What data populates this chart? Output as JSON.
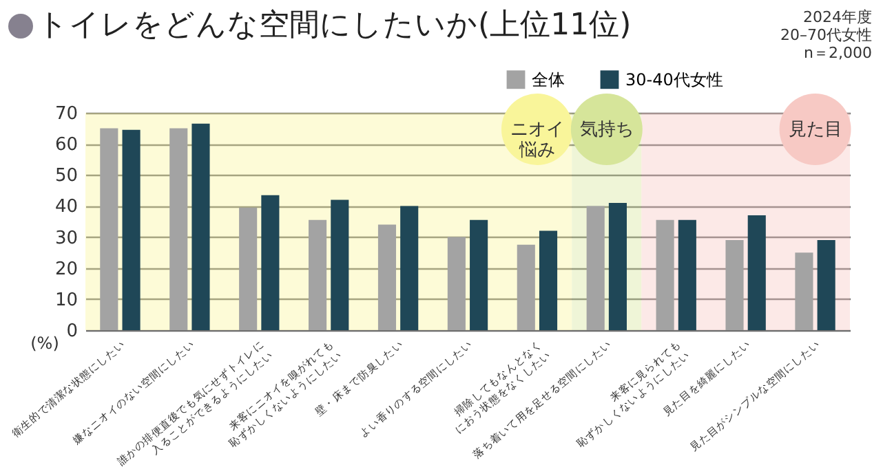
{
  "chart_data": {
    "type": "bar",
    "title": "トイレをどんな空間にしたいか(上位11位)",
    "ylabel": "(%)",
    "annotations": [
      "2024年度",
      "20–70代女性",
      "n＝2,000"
    ],
    "categories": [
      "衛生的で清潔な状態にしたい",
      "嫌なニオイのない空間にしたい",
      "誰かの排便直後でも気にせずトイレに\n入ることができるようにしたい",
      "来客にニオイを嗅がれても\n恥ずかしくないようにしたい",
      "壁・床まで防臭したい",
      "よい香りのする空間にしたい",
      "掃除してもなんとなく\nにおう状態をなくしたい",
      "落ち着いて用を足せる空間にしたい",
      "来客に見られても\n恥ずかしくないようにしたい",
      "見た目を綺麗にしたい",
      "見た目がシンプルな空間にしたい"
    ],
    "series": [
      {
        "name": "全体",
        "color": "#a3a3a3",
        "values": [
          65,
          65,
          39.5,
          35.5,
          34,
          30,
          27.5,
          40,
          35.5,
          29,
          25
        ]
      },
      {
        "name": "30-40代女性",
        "color": "#1f4757",
        "values": [
          64.5,
          66.5,
          43.5,
          42,
          40,
          35.5,
          32,
          41,
          35.5,
          37,
          29
        ]
      }
    ],
    "ylim": [
      0,
      70
    ],
    "yticks": [
      0,
      10,
      20,
      30,
      40,
      50,
      60,
      70
    ],
    "grid": "y",
    "legend": "top right",
    "bands": [
      {
        "axis": "x",
        "from": "衛生的で清潔な状態にしたい",
        "to": "掃除してもなんとなく\nにおう状態をなくしたい",
        "label": "ニオイ悩み",
        "color": "#f9f59a"
      },
      {
        "axis": "x",
        "from": "落ち着いて用を足せる空間にしたい",
        "to": "落ち着いて用を足せる空間にしたい",
        "label": "気持ち",
        "color": "#d6e59a"
      },
      {
        "axis": "x",
        "from": "来客に見られても\n恥ずかしくないようにしたい",
        "to": "見た目がシンプルな空間にしたい",
        "label": "見た目",
        "color": "#f7c9c4"
      }
    ]
  }
}
